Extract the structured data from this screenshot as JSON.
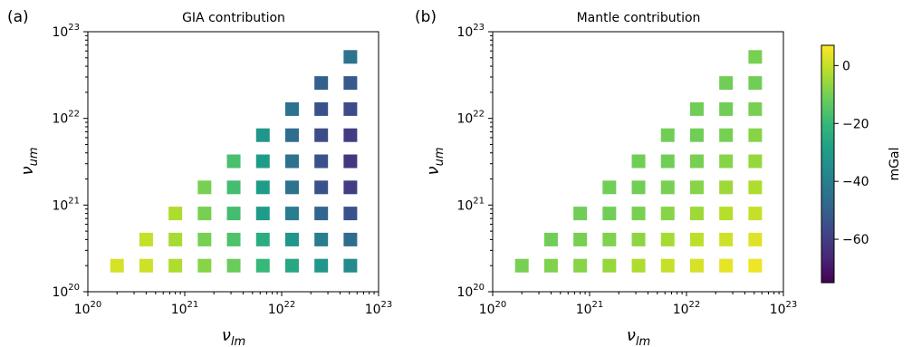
{
  "panels": [
    {
      "panel_label": "(a)",
      "title": "GIA contribution",
      "xlabel_base": "ν",
      "xlabel_sub": "lm",
      "ylabel_base": "ν",
      "ylabel_sub": "um"
    },
    {
      "panel_label": "(b)",
      "title": "Mantle contribution",
      "xlabel_base": "ν",
      "xlabel_sub": "lm",
      "ylabel_base": "ν",
      "ylabel_sub": "um"
    }
  ],
  "colorbar": {
    "label": "mGal",
    "ticks": [
      "0",
      "−20",
      "−40",
      "−60"
    ],
    "tick_values": [
      0,
      -20,
      -40,
      -60
    ],
    "range": [
      -75,
      7
    ],
    "colormap": "viridis"
  },
  "chart_data": [
    {
      "type": "scatter",
      "title": "GIA contribution",
      "x_scale": "log",
      "y_scale": "log",
      "xlim": [
        1e+20,
        1e+23
      ],
      "ylim": [
        1e+20,
        1e+23
      ],
      "xticks": [
        "20",
        "21",
        "22",
        "23"
      ],
      "yticks": [
        "20",
        "21",
        "22",
        "23"
      ],
      "tick_base": "10",
      "x_levels": [
        2e+20,
        4e+20,
        8e+20,
        1.6e+21,
        3.2e+21,
        6.4e+21,
        1.28e+22,
        2.56e+22,
        5.12e+22
      ],
      "y_levels": [
        2e+20,
        4e+20,
        8e+20,
        1.6e+21,
        3.2e+21,
        6.4e+21,
        1.28e+22,
        2.56e+22,
        5.12e+22
      ],
      "values_mGal": [
        [
          2,
          1,
          -3,
          -8,
          -12,
          -20,
          -26,
          -32,
          -36
        ],
        [
          null,
          0,
          -4,
          -10,
          -16,
          -24,
          -32,
          -40,
          -46
        ],
        [
          null,
          null,
          -3,
          -10,
          -18,
          -30,
          -40,
          -48,
          -54
        ],
        [
          null,
          null,
          null,
          -10,
          -18,
          -30,
          -44,
          -54,
          -60
        ],
        [
          null,
          null,
          null,
          null,
          -17,
          -30,
          -44,
          -54,
          -62
        ],
        [
          null,
          null,
          null,
          null,
          null,
          -32,
          -46,
          -56,
          -60
        ],
        [
          null,
          null,
          null,
          null,
          null,
          null,
          -44,
          -54,
          -56
        ],
        [
          null,
          null,
          null,
          null,
          null,
          null,
          null,
          -50,
          -52
        ],
        [
          null,
          null,
          null,
          null,
          null,
          null,
          null,
          null,
          -44
        ]
      ]
    },
    {
      "type": "scatter",
      "title": "Mantle contribution",
      "x_scale": "log",
      "y_scale": "log",
      "xlim": [
        1e+20,
        1e+23
      ],
      "ylim": [
        1e+20,
        1e+23
      ],
      "xticks": [
        "20",
        "21",
        "22",
        "23"
      ],
      "yticks": [
        "20",
        "21",
        "22",
        "23"
      ],
      "tick_base": "10",
      "x_levels": [
        2e+20,
        4e+20,
        8e+20,
        1.6e+21,
        3.2e+21,
        6.4e+21,
        1.28e+22,
        2.56e+22,
        5.12e+22
      ],
      "y_levels": [
        2e+20,
        4e+20,
        8e+20,
        1.6e+21,
        3.2e+21,
        6.4e+21,
        1.28e+22,
        2.56e+22,
        5.12e+22
      ],
      "values_mGal": [
        [
          -10,
          -9,
          -8,
          -6,
          -3,
          0,
          2,
          4,
          5
        ],
        [
          null,
          -11,
          -10,
          -9,
          -7,
          -4,
          -1,
          1,
          3
        ],
        [
          null,
          null,
          -11,
          -11,
          -10,
          -8,
          -5,
          -2,
          0
        ],
        [
          null,
          null,
          null,
          -11,
          -11,
          -10,
          -8,
          -5,
          -3
        ],
        [
          null,
          null,
          null,
          null,
          -11,
          -11,
          -10,
          -8,
          -6
        ],
        [
          null,
          null,
          null,
          null,
          null,
          -11,
          -11,
          -10,
          -8
        ],
        [
          null,
          null,
          null,
          null,
          null,
          null,
          -11,
          -11,
          -10
        ],
        [
          null,
          null,
          null,
          null,
          null,
          null,
          null,
          -11,
          -11
        ],
        [
          null,
          null,
          null,
          null,
          null,
          null,
          null,
          null,
          -10
        ]
      ]
    }
  ]
}
